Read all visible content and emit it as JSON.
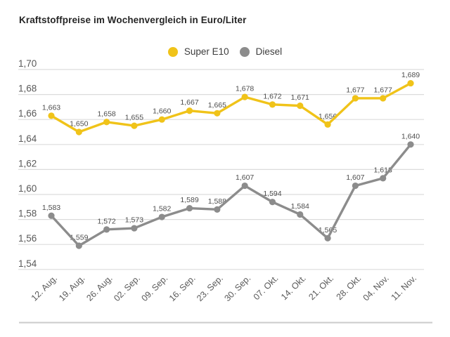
{
  "title": "Kraftstoffpreise im Wochenvergleich in Euro/Liter",
  "legend": {
    "position": "top-center",
    "items": [
      {
        "label": "Super E10",
        "color": "#F0C319"
      },
      {
        "label": "Diesel",
        "color": "#8C8C8C"
      }
    ]
  },
  "chart_data": {
    "type": "line",
    "title": "Kraftstoffpreise im Wochenvergleich in Euro/Liter",
    "categories": [
      "12. Aug.",
      "19. Aug.",
      "26. Aug.",
      "02. Sep.",
      "09. Sep.",
      "16. Sep.",
      "23. Sep.",
      "30. Sep.",
      "07. Okt.",
      "14. Okt.",
      "21. Okt.",
      "28. Okt.",
      "04. Nov.",
      "11. Nov."
    ],
    "series": [
      {
        "name": "Super E10",
        "color": "#F0C319",
        "values": [
          1.663,
          1.65,
          1.658,
          1.655,
          1.66,
          1.667,
          1.665,
          1.678,
          1.672,
          1.671,
          1.656,
          1.677,
          1.677,
          1.689
        ]
      },
      {
        "name": "Diesel",
        "color": "#8C8C8C",
        "values": [
          1.583,
          1.559,
          1.572,
          1.573,
          1.582,
          1.589,
          1.588,
          1.607,
          1.594,
          1.584,
          1.565,
          1.607,
          1.613,
          1.64
        ]
      }
    ],
    "ylim": [
      1.54,
      1.7
    ],
    "yticks": [
      1.7,
      1.68,
      1.66,
      1.64,
      1.62,
      1.6,
      1.58,
      1.56,
      1.54
    ],
    "ytick_labels": [
      "1,70",
      "1,68",
      "1,66",
      "1,64",
      "1,62",
      "1,60",
      "1,58",
      "1,56",
      "1,54"
    ],
    "grid": true,
    "legend_position": "top-center",
    "xlabel": "",
    "ylabel": "",
    "decimal_separator": ","
  },
  "colors": {
    "background": "#FFFFFF",
    "grid_line": "#DCDCDC",
    "axis_line": "#CBCBCB",
    "tick_label": "#595959",
    "data_label": "#4D4D4D",
    "title": "#262626"
  }
}
